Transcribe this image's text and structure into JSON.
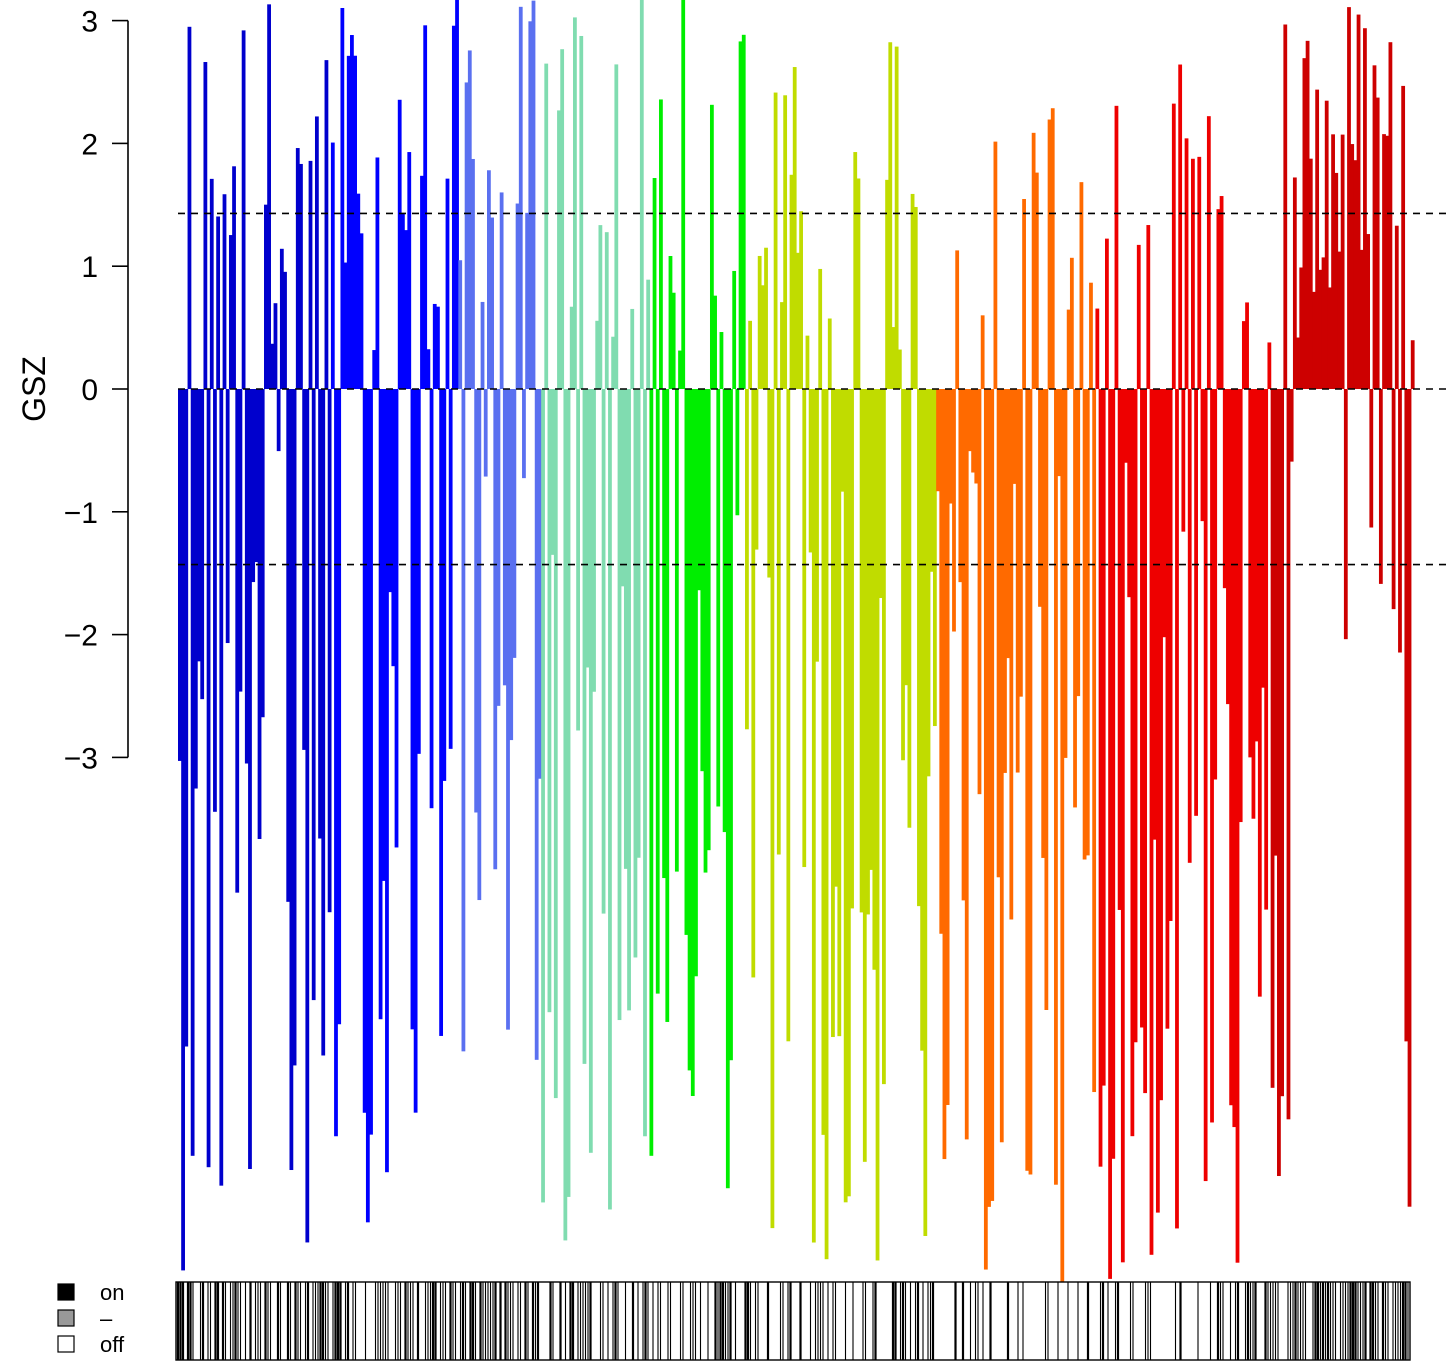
{
  "chart_data": {
    "type": "bar",
    "ylabel": "GSZ",
    "ylim": [
      -3.15,
      3.25
    ],
    "yticks": [
      {
        "value": 3,
        "label": "3"
      },
      {
        "value": 2,
        "label": "2"
      },
      {
        "value": 1,
        "label": "1"
      },
      {
        "value": 0,
        "label": "0"
      },
      {
        "value": -1,
        "label": "−1"
      },
      {
        "value": -2,
        "label": "−2"
      },
      {
        "value": -3,
        "label": "−3"
      }
    ],
    "reference_lines": [
      1.43,
      0,
      -1.43
    ],
    "groups": [
      {
        "color": "#0000cd",
        "count": 48,
        "pos_share": 0.45,
        "pos_max": 3.3,
        "neg_min": -7.2
      },
      {
        "color": "#0000ff",
        "count": 40,
        "pos_share": 0.5,
        "pos_max": 3.3,
        "neg_min": -6.8
      },
      {
        "color": "#5a70f0",
        "count": 26,
        "pos_share": 0.55,
        "pos_max": 3.3,
        "neg_min": -5.5
      },
      {
        "color": "#80dcb0",
        "count": 34,
        "pos_share": 0.45,
        "pos_max": 3.3,
        "neg_min": -7.2
      },
      {
        "color": "#00ee00",
        "count": 30,
        "pos_share": 0.5,
        "pos_max": 3.3,
        "neg_min": -6.6
      },
      {
        "color": "#c0dc00",
        "count": 60,
        "pos_share": 0.35,
        "pos_max": 3.3,
        "neg_min": -7.3
      },
      {
        "color": "#ff6a00",
        "count": 50,
        "pos_share": 0.3,
        "pos_max": 2.5,
        "neg_min": -7.3
      },
      {
        "color": "#ee0000",
        "count": 55,
        "pos_share": 0.4,
        "pos_max": 3.3,
        "neg_min": -7.3
      },
      {
        "color": "#cd0000",
        "count": 45,
        "pos_share": 0.6,
        "pos_max": 3.3,
        "neg_min": -7.3
      }
    ]
  },
  "legend": {
    "items": [
      {
        "label": "on",
        "color": "#000000"
      },
      {
        "label": "–",
        "color": "#999999"
      },
      {
        "label": "off",
        "color": "#ffffff"
      }
    ]
  }
}
